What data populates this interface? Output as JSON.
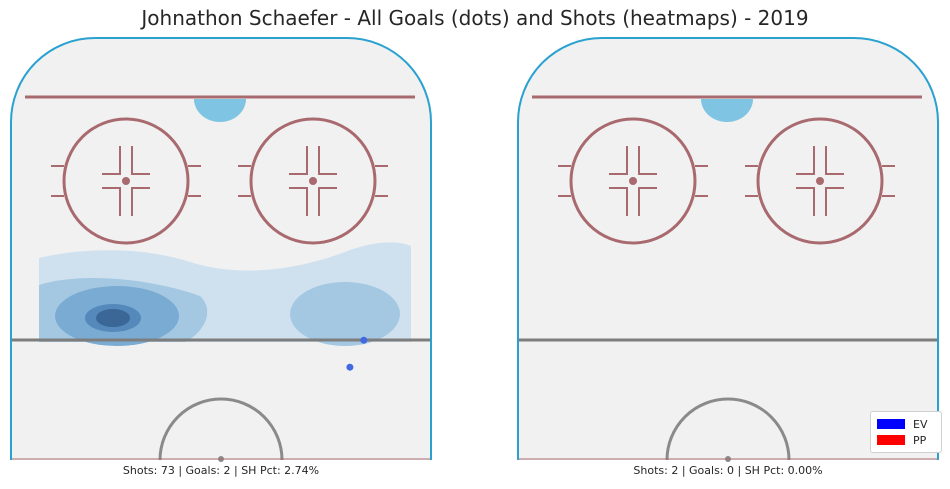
{
  "figure": {
    "title": "Johnathon Schaefer - All Goals (dots) and Shots (heatmaps) - 2019"
  },
  "chart_data": [
    {
      "type": "heatmap",
      "panel": "left",
      "caption": "Shots: 73 | Goals: 2 | SH Pct: 2.74%",
      "stats": {
        "shots": 73,
        "goals": 2,
        "sh_pct": 2.74
      },
      "goals": [
        {
          "x": 0.84,
          "y": 0.716,
          "strength": "EV"
        },
        {
          "x": 0.807,
          "y": 0.78,
          "strength": "EV"
        }
      ],
      "heat_colors": [
        "#cfe1ef",
        "#a4c8e2",
        "#7aabd3",
        "#5588bb",
        "#3a6795"
      ]
    },
    {
      "type": "heatmap",
      "panel": "right",
      "caption": "Shots: 2 | Goals: 0 | SH Pct: 0.00%",
      "stats": {
        "shots": 2,
        "goals": 0,
        "sh_pct": 0.0
      },
      "goals": []
    }
  ],
  "legend": {
    "placement": "bottom-right",
    "entries": [
      {
        "label": "EV",
        "color": "#0000ff"
      },
      {
        "label": "PP",
        "color": "#ff0000"
      }
    ]
  },
  "rink_colors": {
    "ice": "#f1f1f1",
    "boards": "#2aa1d0",
    "red_line": "#a86a6e",
    "blue_line": "#7d7d7d",
    "crease": "#7fc4e2",
    "goal_dot": "#4169e1"
  }
}
